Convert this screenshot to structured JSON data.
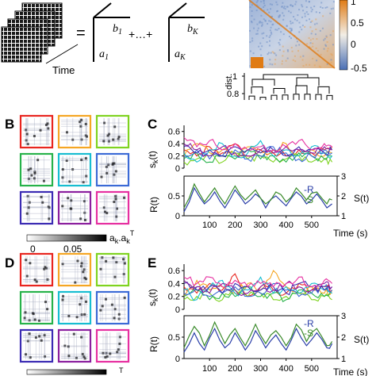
{
  "header": {
    "time_label": "Time",
    "equals": "=",
    "ellipsis_plus": "+…+",
    "term1": {
      "a": "a",
      "a_sub": "1",
      "b": "b",
      "b_sub": "1"
    },
    "termK": {
      "a": "a",
      "a_sub": "K",
      "b": "b",
      "b_sub": "K"
    },
    "colorbar_ticks": [
      "1",
      "0.5",
      "0",
      "-0.5"
    ],
    "dist_label": "dist.",
    "dist_ticks": [
      "1",
      "0.8"
    ],
    "colors": {
      "low": "#4a6fb5",
      "mid": "#f2eee6",
      "high": "#e07b14"
    }
  },
  "panel_B": {
    "letter": "B",
    "frame_colors": [
      "#e8251f",
      "#f5a623",
      "#7fd320",
      "#27b24a",
      "#17bdd1",
      "#3b6ad6",
      "#3b2bb3",
      "#8a1f9e",
      "#e62fa0"
    ],
    "colorbar_label_base": "a",
    "colorbar_label_sub": "k",
    "colorbar_label_dot": ".a",
    "colorbar_label_sub2": "k",
    "colorbar_label_sup": "T",
    "colorbar_ticks": [
      "0",
      "0.05"
    ]
  },
  "panel_C": {
    "letter": "C",
    "top_ylabel": "s",
    "top_ylabel_sub": "k",
    "top_ylabel_end": "(t)",
    "top_yticks": [
      "0.6",
      "0.4",
      "0.2",
      "0"
    ],
    "bottom_ylabel_left": "R(t)",
    "bottom_yticks_left": [
      "0.5",
      "0"
    ],
    "bottom_ylabel_right": "S(t)",
    "bottom_yticks_right": [
      "3",
      "2",
      "1"
    ],
    "legend": [
      "-R",
      "-S"
    ],
    "xticks": [
      "100",
      "200",
      "300",
      "400",
      "500"
    ],
    "xlabel": "Time (s)"
  },
  "panel_D": {
    "letter": "D",
    "colorbar_label_sup": "T"
  },
  "panel_E": {
    "letter": "E",
    "top_ylabel": "s",
    "top_ylabel_sub": "k",
    "top_ylabel_end": "(t)",
    "top_yticks": [
      "0.6",
      "0.4",
      "0.2",
      "0"
    ],
    "bottom_ylabel_left": "R(t)",
    "bottom_yticks_left": [
      "0.5",
      "0"
    ],
    "bottom_ylabel_right": "S(t)",
    "bottom_yticks_right": [
      "3",
      "2",
      "1"
    ],
    "legend": [
      "-R",
      "-S"
    ],
    "xticks": [
      "100",
      "200",
      "300",
      "400",
      "500"
    ],
    "xlabel": "Time (s)"
  },
  "chart_data": [
    {
      "panel": "C-top",
      "type": "line",
      "ylabel": "s_k(t)",
      "ylim": [
        0,
        0.7
      ],
      "xlim": [
        0,
        600
      ],
      "series_colors": [
        "#e8251f",
        "#f5a623",
        "#7fd320",
        "#27b24a",
        "#17bdd1",
        "#3b6ad6",
        "#3b2bb3",
        "#8a1f9e",
        "#e62fa0"
      ],
      "x": [
        0,
        50,
        100,
        150,
        200,
        250,
        300,
        350,
        400,
        450,
        500,
        550,
        580
      ],
      "series": [
        {
          "values": [
            0.3,
            0.2,
            0.35,
            0.25,
            0.4,
            0.2,
            0.3,
            0.25,
            0.2,
            0.3,
            0.25,
            0.3,
            0.35
          ]
        },
        {
          "values": [
            0.2,
            0.4,
            0.25,
            0.3,
            0.2,
            0.35,
            0.25,
            0.3,
            0.4,
            0.2,
            0.3,
            0.2,
            0.25
          ]
        },
        {
          "values": [
            0.1,
            0.15,
            0.2,
            0.1,
            0.25,
            0.15,
            0.2,
            0.1,
            0.15,
            0.2,
            0.1,
            0.15,
            0.1
          ]
        },
        {
          "values": [
            0.15,
            0.25,
            0.1,
            0.2,
            0.15,
            0.3,
            0.15,
            0.2,
            0.1,
            0.25,
            0.2,
            0.15,
            0.2
          ]
        },
        {
          "values": [
            0.25,
            0.1,
            0.3,
            0.4,
            0.2,
            0.25,
            0.45,
            0.2,
            0.3,
            0.2,
            0.35,
            0.25,
            0.2
          ]
        },
        {
          "values": [
            0.2,
            0.3,
            0.15,
            0.2,
            0.3,
            0.15,
            0.2,
            0.35,
            0.25,
            0.15,
            0.2,
            0.3,
            0.25
          ]
        },
        {
          "values": [
            0.35,
            0.25,
            0.3,
            0.2,
            0.35,
            0.3,
            0.25,
            0.3,
            0.2,
            0.35,
            0.3,
            0.25,
            0.3
          ]
        },
        {
          "values": [
            0.4,
            0.3,
            0.2,
            0.35,
            0.25,
            0.2,
            0.3,
            0.25,
            0.35,
            0.3,
            0.25,
            0.35,
            0.3
          ]
        },
        {
          "values": [
            0.5,
            0.35,
            0.45,
            0.3,
            0.4,
            0.3,
            0.35,
            0.3,
            0.35,
            0.45,
            0.3,
            0.4,
            0.35
          ]
        }
      ]
    },
    {
      "panel": "C-bottom",
      "type": "line",
      "xlabel": "Time (s)",
      "ylabel": "R(t)",
      "ylabel_right": "S(t)",
      "ylim": [
        0,
        1
      ],
      "ylim_right": [
        1,
        3
      ],
      "xlim": [
        0,
        600
      ],
      "x": [
        0,
        40,
        80,
        120,
        160,
        200,
        240,
        280,
        320,
        360,
        400,
        440,
        480,
        520,
        560,
        580
      ],
      "series": [
        {
          "name": "R",
          "color": "#2b3fa8",
          "values": [
            0.1,
            0.7,
            0.3,
            0.6,
            0.2,
            0.65,
            0.3,
            0.55,
            0.2,
            0.5,
            0.25,
            0.6,
            0.3,
            0.55,
            0.2,
            0.3
          ]
        },
        {
          "name": "S",
          "color": "#3a8a2a",
          "values": [
            0.2,
            0.8,
            0.35,
            0.7,
            0.3,
            0.75,
            0.4,
            0.65,
            0.3,
            0.6,
            0.35,
            0.7,
            0.4,
            0.6,
            0.3,
            0.4
          ]
        }
      ]
    },
    {
      "panel": "E-top",
      "type": "line",
      "ylabel": "s_k(t)",
      "ylim": [
        0,
        0.7
      ],
      "xlim": [
        0,
        600
      ],
      "series_colors": [
        "#e8251f",
        "#f5a623",
        "#7fd320",
        "#27b24a",
        "#17bdd1",
        "#3b6ad6",
        "#3b2bb3",
        "#8a1f9e",
        "#e62fa0"
      ],
      "x": [
        0,
        50,
        100,
        150,
        200,
        250,
        300,
        350,
        400,
        450,
        500,
        550,
        580
      ],
      "series": [
        {
          "values": [
            0.35,
            0.25,
            0.4,
            0.3,
            0.55,
            0.2,
            0.35,
            0.3,
            0.25,
            0.4,
            0.3,
            0.35,
            0.3
          ]
        },
        {
          "values": [
            0.2,
            0.45,
            0.3,
            0.35,
            0.25,
            0.4,
            0.3,
            0.6,
            0.35,
            0.25,
            0.35,
            0.25,
            0.3
          ]
        },
        {
          "values": [
            0.15,
            0.2,
            0.25,
            0.15,
            0.3,
            0.2,
            0.25,
            0.15,
            0.2,
            0.25,
            0.15,
            0.2,
            0.15
          ]
        },
        {
          "values": [
            0.2,
            0.3,
            0.15,
            0.25,
            0.2,
            0.35,
            0.2,
            0.25,
            0.15,
            0.3,
            0.25,
            0.2,
            0.25
          ]
        },
        {
          "values": [
            0.3,
            0.15,
            0.35,
            0.45,
            0.25,
            0.3,
            0.5,
            0.25,
            0.35,
            0.25,
            0.4,
            0.3,
            0.25
          ]
        },
        {
          "values": [
            0.25,
            0.35,
            0.2,
            0.25,
            0.35,
            0.2,
            0.25,
            0.4,
            0.3,
            0.2,
            0.25,
            0.35,
            0.3
          ]
        },
        {
          "values": [
            0.4,
            0.3,
            0.35,
            0.25,
            0.4,
            0.35,
            0.3,
            0.35,
            0.25,
            0.4,
            0.35,
            0.3,
            0.35
          ]
        },
        {
          "values": [
            0.45,
            0.35,
            0.25,
            0.4,
            0.3,
            0.25,
            0.35,
            0.3,
            0.4,
            0.35,
            0.3,
            0.4,
            0.35
          ]
        },
        {
          "values": [
            0.5,
            0.4,
            0.5,
            0.35,
            0.45,
            0.35,
            0.4,
            0.35,
            0.4,
            0.5,
            0.35,
            0.45,
            0.4
          ]
        }
      ]
    },
    {
      "panel": "E-bottom",
      "type": "line",
      "xlabel": "Time (s)",
      "ylabel": "R(t)",
      "ylabel_right": "S(t)",
      "ylim": [
        0,
        1
      ],
      "ylim_right": [
        1,
        3
      ],
      "xlim": [
        0,
        600
      ],
      "x": [
        0,
        40,
        80,
        120,
        160,
        200,
        240,
        280,
        320,
        360,
        400,
        440,
        480,
        520,
        560,
        580
      ],
      "series": [
        {
          "name": "R",
          "color": "#2b3fa8",
          "values": [
            0.15,
            0.6,
            0.2,
            0.7,
            0.25,
            0.6,
            0.2,
            0.65,
            0.25,
            0.55,
            0.2,
            0.7,
            0.3,
            0.6,
            0.25,
            0.35
          ]
        },
        {
          "name": "S",
          "color": "#3a8a2a",
          "values": [
            0.25,
            0.75,
            0.3,
            0.85,
            0.35,
            0.7,
            0.3,
            0.8,
            0.35,
            0.65,
            0.3,
            0.8,
            0.4,
            0.7,
            0.3,
            0.4
          ]
        }
      ]
    }
  ]
}
